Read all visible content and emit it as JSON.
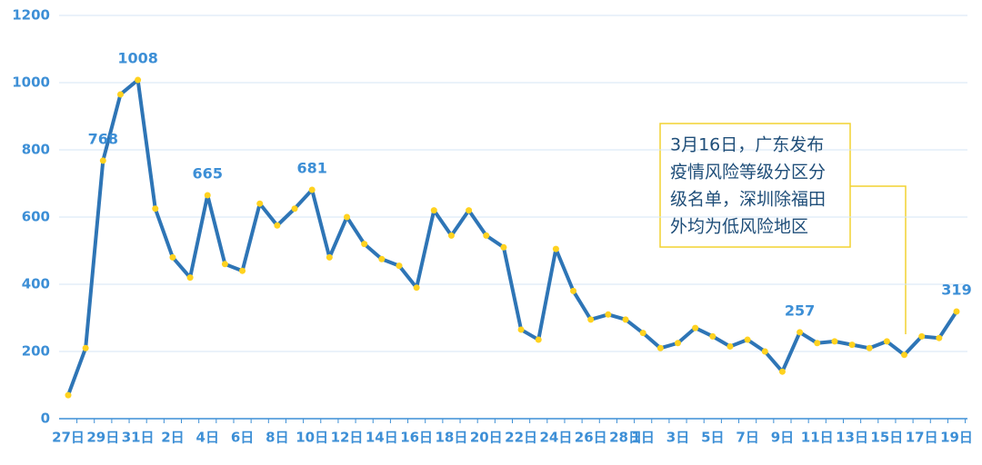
{
  "chart_data": {
    "type": "line",
    "categories": [
      "27日",
      null,
      "29日",
      null,
      "31日",
      null,
      "2日",
      null,
      "4日",
      null,
      "6日",
      null,
      "8日",
      null,
      "10日",
      null,
      "12日",
      null,
      "14日",
      null,
      "16日",
      null,
      "18日",
      null,
      "20日",
      null,
      "22日",
      null,
      "24日",
      null,
      "26日",
      null,
      "28日",
      "1日",
      null,
      "3日",
      null,
      "5日",
      null,
      "7日",
      null,
      "9日",
      null,
      "11日",
      null,
      "13日",
      null,
      "15日",
      null,
      "17日",
      null,
      "19日"
    ],
    "series": [
      {
        "color": "#2e75b6",
        "marker_color": "#ffd21f",
        "values": [
          70,
          210,
          768,
          965,
          1008,
          625,
          480,
          420,
          665,
          460,
          440,
          640,
          575,
          625,
          681,
          480,
          600,
          520,
          475,
          455,
          390,
          620,
          545,
          620,
          545,
          510,
          265,
          235,
          505,
          380,
          295,
          310,
          295,
          255,
          210,
          225,
          270,
          245,
          215,
          235,
          200,
          140,
          257,
          225,
          230,
          220,
          210,
          230,
          190,
          245,
          240,
          319
        ],
        "value_labels": [
          null,
          null,
          "768",
          null,
          "1008",
          null,
          null,
          null,
          "665",
          null,
          null,
          null,
          null,
          null,
          "681",
          null,
          null,
          null,
          null,
          null,
          null,
          null,
          null,
          null,
          null,
          null,
          null,
          null,
          null,
          null,
          null,
          null,
          null,
          null,
          null,
          null,
          null,
          null,
          null,
          null,
          null,
          null,
          "257",
          null,
          null,
          null,
          null,
          null,
          null,
          null,
          null,
          "319"
        ]
      }
    ],
    "ylim": [
      0,
      1200
    ],
    "yticks": [
      0,
      200,
      400,
      600,
      800,
      1000,
      1200
    ],
    "grid": true,
    "annotation": {
      "lines": [
        "3月16日，广东发布",
        "疫情风险等级分区分",
        "级名单，深圳除福田",
        "外均为低风险地区"
      ]
    }
  }
}
